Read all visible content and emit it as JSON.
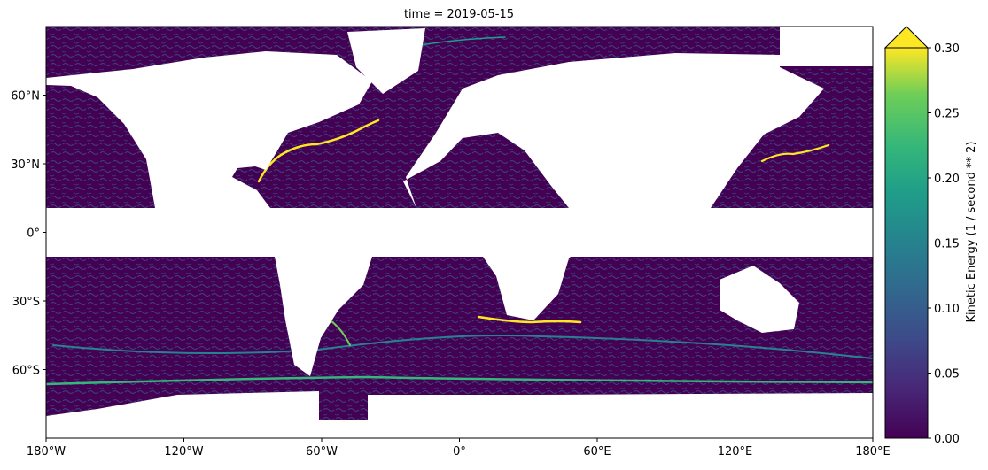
{
  "chart_data": {
    "type": "map",
    "title": "time = 2019-05-15",
    "xlim": [
      -180,
      180
    ],
    "ylim": [
      -90,
      90
    ],
    "xticks": [
      {
        "value": -180,
        "label": "180°W"
      },
      {
        "value": -120,
        "label": "120°W"
      },
      {
        "value": -60,
        "label": "60°W"
      },
      {
        "value": 0,
        "label": "0°"
      },
      {
        "value": 60,
        "label": "60°E"
      },
      {
        "value": 120,
        "label": "120°E"
      },
      {
        "value": 180,
        "label": "180°E"
      }
    ],
    "yticks": [
      {
        "value": -60,
        "label": "60°S"
      },
      {
        "value": -30,
        "label": "30°S"
      },
      {
        "value": 0,
        "label": "0°"
      },
      {
        "value": 30,
        "label": "30°N"
      },
      {
        "value": 60,
        "label": "60°N"
      }
    ],
    "colorbar": {
      "label": "Kinetic Energy (1 / second ** 2)",
      "lim": [
        0,
        0.3
      ],
      "ticks": [
        {
          "value": 0,
          "label": "0.00"
        },
        {
          "value": 0.05,
          "label": "0.05"
        },
        {
          "value": 0.1,
          "label": "0.10"
        },
        {
          "value": 0.15,
          "label": "0.15"
        },
        {
          "value": 0.2,
          "label": "0.20"
        },
        {
          "value": 0.25,
          "label": "0.25"
        },
        {
          "value": 0.3,
          "label": "0.30"
        }
      ]
    }
  }
}
